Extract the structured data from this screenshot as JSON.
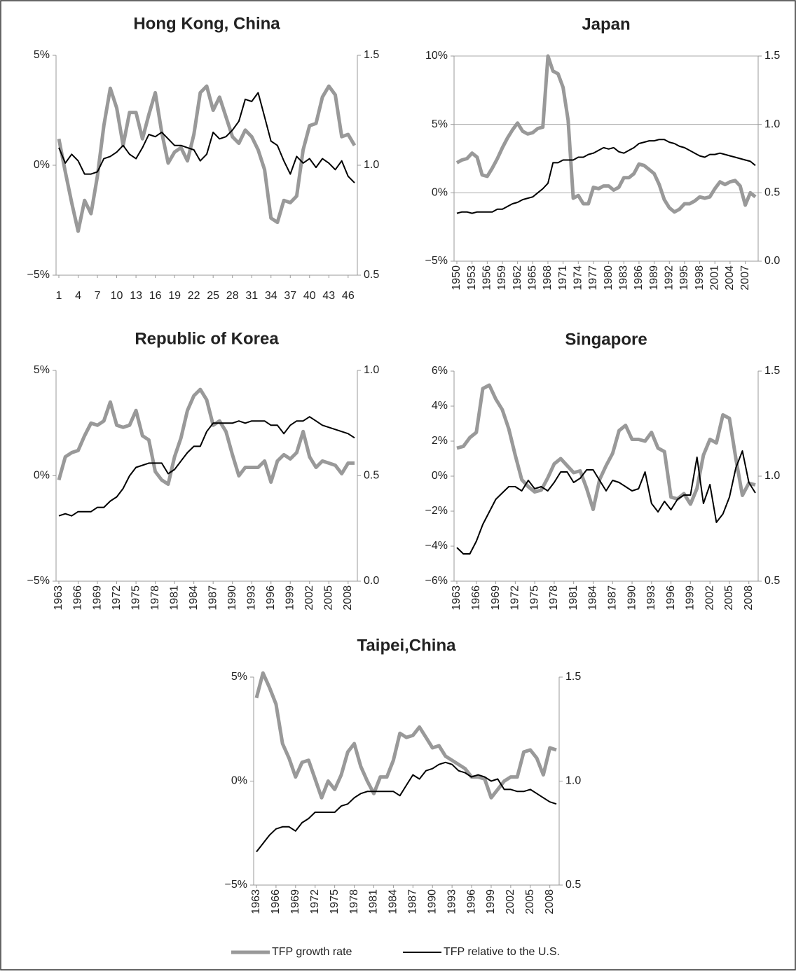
{
  "chart_data": [
    {
      "type": "line",
      "title": "Hong Kong, China",
      "grid": false,
      "categories": [
        "1",
        null,
        null,
        "4",
        null,
        null,
        "7",
        null,
        null,
        "10",
        null,
        null,
        "13",
        null,
        null,
        "16",
        null,
        null,
        "19",
        null,
        null,
        "22",
        null,
        null,
        "25",
        null,
        null,
        "28",
        null,
        null,
        "31",
        null,
        null,
        "34",
        null,
        null,
        "37",
        null,
        null,
        "40",
        null,
        null,
        "43",
        null,
        null,
        "46",
        null
      ],
      "ylim": [
        -5,
        5
      ],
      "yticks": [
        {
          "value": -5,
          "label": "−5%"
        },
        {
          "value": 0,
          "label": "0%"
        },
        {
          "value": 5,
          "label": "5%"
        }
      ],
      "y2lim": [
        0.5,
        1.5
      ],
      "y2ticks": [
        0.5,
        {
          "value": 1,
          "label": "1.0"
        },
        1.5
      ],
      "series": [
        {
          "name": "TFP growth rate",
          "color": "#999999",
          "values": [
            1.2,
            -0.3,
            -1.7,
            -3.0,
            -1.6,
            -2.2,
            -0.5,
            1.8,
            3.5,
            2.6,
            0.9,
            2.4,
            2.4,
            1.2,
            2.3,
            3.3,
            1.5,
            0.1,
            0.6,
            0.8,
            0.2,
            1.4,
            3.3,
            3.6,
            2.5,
            3.1,
            2.2,
            1.3,
            1.0,
            1.6,
            1.3,
            0.7,
            -0.2,
            -2.4,
            -2.6,
            -1.6,
            -1.7,
            -1.4,
            0.7,
            1.8,
            1.9,
            3.1,
            3.6,
            3.2,
            1.3,
            1.4,
            0.9
          ]
        },
        {
          "name": "TFP relative to the U.S.",
          "color": "#000000",
          "axis": "y2",
          "values": [
            1.08,
            1.01,
            1.05,
            1.02,
            0.96,
            0.96,
            0.97,
            1.03,
            1.04,
            1.06,
            1.09,
            1.05,
            1.03,
            1.08,
            1.14,
            1.13,
            1.15,
            1.12,
            1.09,
            1.09,
            1.08,
            1.07,
            1.02,
            1.05,
            1.15,
            1.12,
            1.13,
            1.16,
            1.2,
            1.3,
            1.29,
            1.33,
            1.22,
            1.11,
            1.09,
            1.02,
            0.96,
            1.04,
            1.01,
            1.03,
            0.99,
            1.03,
            1.01,
            0.98,
            1.02,
            0.95,
            0.92
          ]
        }
      ]
    },
    {
      "type": "line",
      "title": "Japan",
      "grid": true,
      "categories": [
        "1950",
        null,
        null,
        "1953",
        null,
        null,
        "1956",
        null,
        null,
        "1959",
        null,
        null,
        "1962",
        null,
        null,
        "1965",
        null,
        null,
        "1968",
        null,
        null,
        "1971",
        null,
        null,
        "1974",
        null,
        null,
        "1977",
        null,
        null,
        "1980",
        null,
        null,
        "1983",
        null,
        null,
        "1986",
        null,
        null,
        "1989",
        null,
        null,
        "1992",
        null,
        null,
        "1995",
        null,
        null,
        "1998",
        null,
        null,
        "2001",
        null,
        null,
        "2004",
        null,
        null,
        "2007",
        null,
        null
      ],
      "ylim": [
        -5,
        10
      ],
      "yticks": [
        {
          "value": -5,
          "label": "−5%"
        },
        {
          "value": 0,
          "label": "0%"
        },
        {
          "value": 5,
          "label": "5%"
        },
        {
          "value": 10,
          "label": "10%"
        }
      ],
      "y2lim": [
        0,
        1.5
      ],
      "y2ticks": [
        {
          "value": 0,
          "label": "0.0"
        },
        0.5,
        {
          "value": 1,
          "label": "1.0"
        },
        1.5
      ],
      "series": [
        {
          "name": "TFP growth rate",
          "color": "#999999",
          "values": [
            2.2,
            2.4,
            2.5,
            2.9,
            2.6,
            1.3,
            1.2,
            1.8,
            2.5,
            3.3,
            4.0,
            4.6,
            5.1,
            4.5,
            4.3,
            4.4,
            4.7,
            4.8,
            10.0,
            8.9,
            8.7,
            7.7,
            5.3,
            -0.4,
            -0.2,
            -0.8,
            -0.8,
            0.4,
            0.3,
            0.5,
            0.5,
            0.2,
            0.4,
            1.1,
            1.1,
            1.4,
            2.1,
            2.0,
            1.7,
            1.4,
            0.6,
            -0.5,
            -1.1,
            -1.4,
            -1.2,
            -0.8,
            -0.8,
            -0.6,
            -0.3,
            -0.4,
            -0.3,
            0.3,
            0.8,
            0.6,
            0.8,
            0.9,
            0.5,
            -0.9,
            0.0,
            -0.3
          ]
        },
        {
          "name": "TFP relative to the U.S.",
          "color": "#000000",
          "axis": "y2",
          "values": [
            0.35,
            0.36,
            0.36,
            0.35,
            0.36,
            0.36,
            0.36,
            0.36,
            0.38,
            0.38,
            0.4,
            0.42,
            0.43,
            0.45,
            0.46,
            0.47,
            0.5,
            0.53,
            0.57,
            0.72,
            0.72,
            0.74,
            0.74,
            0.74,
            0.76,
            0.76,
            0.78,
            0.79,
            0.81,
            0.83,
            0.82,
            0.83,
            0.8,
            0.79,
            0.81,
            0.83,
            0.86,
            0.87,
            0.88,
            0.88,
            0.89,
            0.89,
            0.87,
            0.86,
            0.84,
            0.83,
            0.81,
            0.79,
            0.77,
            0.76,
            0.78,
            0.78,
            0.79,
            0.78,
            0.77,
            0.76,
            0.75,
            0.74,
            0.73,
            0.7
          ]
        }
      ]
    },
    {
      "type": "line",
      "title": "Republic of Korea",
      "grid": false,
      "categories": [
        "1963",
        null,
        null,
        "1966",
        null,
        null,
        "1969",
        null,
        null,
        "1972",
        null,
        null,
        "1975",
        null,
        null,
        "1978",
        null,
        null,
        "1981",
        null,
        null,
        "1984",
        null,
        null,
        "1987",
        null,
        null,
        "1990",
        null,
        null,
        "1993",
        null,
        null,
        "1996",
        null,
        null,
        "1999",
        null,
        null,
        "2002",
        null,
        null,
        "2005",
        null,
        null,
        "2008",
        null
      ],
      "ylim": [
        -5,
        5
      ],
      "yticks": [
        {
          "value": -5,
          "label": "−5%"
        },
        {
          "value": 0,
          "label": "0%"
        },
        {
          "value": 5,
          "label": "5%"
        }
      ],
      "y2lim": [
        0,
        1
      ],
      "y2ticks": [
        {
          "value": 0,
          "label": "0.0"
        },
        0.5,
        {
          "value": 1,
          "label": "1.0"
        }
      ],
      "series": [
        {
          "name": "TFP growth rate",
          "color": "#999999",
          "values": [
            -0.2,
            0.9,
            1.1,
            1.2,
            1.9,
            2.5,
            2.4,
            2.6,
            3.5,
            2.4,
            2.3,
            2.4,
            3.1,
            1.9,
            1.7,
            0.2,
            -0.2,
            -0.4,
            0.9,
            1.8,
            3.1,
            3.8,
            4.1,
            3.6,
            2.4,
            2.6,
            2.1,
            1.0,
            0.0,
            0.4,
            0.4,
            0.4,
            0.7,
            -0.3,
            0.7,
            1.0,
            0.8,
            1.1,
            2.1,
            0.9,
            0.4,
            0.7,
            0.6,
            0.5,
            0.1,
            0.6,
            0.6
          ]
        },
        {
          "name": "TFP relative to the U.S.",
          "color": "#000000",
          "axis": "y2",
          "values": [
            0.31,
            0.32,
            0.31,
            0.33,
            0.33,
            0.33,
            0.35,
            0.35,
            0.38,
            0.4,
            0.44,
            0.5,
            0.54,
            0.55,
            0.56,
            0.56,
            0.56,
            0.51,
            0.53,
            0.57,
            0.61,
            0.64,
            0.64,
            0.71,
            0.75,
            0.75,
            0.75,
            0.75,
            0.76,
            0.75,
            0.76,
            0.76,
            0.76,
            0.74,
            0.74,
            0.7,
            0.74,
            0.76,
            0.76,
            0.78,
            0.76,
            0.74,
            0.73,
            0.72,
            0.71,
            0.7,
            0.68
          ]
        }
      ]
    },
    {
      "type": "line",
      "title": "Singapore",
      "grid": false,
      "categories": [
        "1963",
        null,
        null,
        "1966",
        null,
        null,
        "1969",
        null,
        null,
        "1972",
        null,
        null,
        "1975",
        null,
        null,
        "1978",
        null,
        null,
        "1981",
        null,
        null,
        "1984",
        null,
        null,
        "1987",
        null,
        null,
        "1990",
        null,
        null,
        "1993",
        null,
        null,
        "1996",
        null,
        null,
        "1999",
        null,
        null,
        "2002",
        null,
        null,
        "2005",
        null,
        null,
        "2008",
        null
      ],
      "ylim": [
        -6,
        6
      ],
      "yticks": [
        {
          "value": -6,
          "label": "−6%"
        },
        {
          "value": -4,
          "label": "−4%"
        },
        {
          "value": -2,
          "label": "−2%"
        },
        {
          "value": 0,
          "label": "0%"
        },
        {
          "value": 2,
          "label": "2%"
        },
        {
          "value": 4,
          "label": "4%"
        },
        {
          "value": 6,
          "label": "6%"
        }
      ],
      "y2lim": [
        0.5,
        1.5
      ],
      "y2ticks": [
        0.5,
        {
          "value": 1,
          "label": "1.0"
        },
        1.5
      ],
      "series": [
        {
          "name": "TFP growth rate",
          "color": "#999999",
          "values": [
            1.6,
            1.7,
            2.2,
            2.5,
            5.0,
            5.2,
            4.4,
            3.8,
            2.7,
            1.2,
            -0.2,
            -0.6,
            -0.9,
            -0.8,
            -0.1,
            0.7,
            1.0,
            0.6,
            0.2,
            0.3,
            -0.7,
            -1.9,
            -0.2,
            0.6,
            1.3,
            2.6,
            2.9,
            2.1,
            2.1,
            2.0,
            2.5,
            1.6,
            1.4,
            -1.2,
            -1.3,
            -1.0,
            -1.6,
            -0.7,
            1.2,
            2.1,
            1.9,
            3.5,
            3.3,
            1.0,
            -1.1,
            -0.4,
            -0.5
          ]
        },
        {
          "name": "TFP relative to the U.S.",
          "color": "#000000",
          "axis": "y2",
          "values": [
            0.66,
            0.63,
            0.63,
            0.69,
            0.77,
            0.83,
            0.89,
            0.92,
            0.95,
            0.95,
            0.93,
            0.98,
            0.94,
            0.95,
            0.93,
            0.97,
            1.02,
            1.02,
            0.97,
            0.99,
            1.03,
            1.03,
            0.98,
            0.93,
            0.98,
            0.97,
            0.95,
            0.93,
            0.94,
            1.02,
            0.87,
            0.83,
            0.88,
            0.84,
            0.89,
            0.91,
            0.91,
            1.09,
            0.87,
            0.96,
            0.78,
            0.82,
            0.9,
            1.04,
            1.12,
            0.97,
            0.92
          ]
        }
      ]
    },
    {
      "type": "line",
      "title": "Taipei,China",
      "grid": false,
      "legend": "bottom",
      "categories": [
        "1963",
        null,
        null,
        "1966",
        null,
        null,
        "1969",
        null,
        null,
        "1972",
        null,
        null,
        "1975",
        null,
        null,
        "1978",
        null,
        null,
        "1981",
        null,
        null,
        "1984",
        null,
        null,
        "1987",
        null,
        null,
        "1990",
        null,
        null,
        "1993",
        null,
        null,
        "1996",
        null,
        null,
        "1999",
        null,
        null,
        "2002",
        null,
        null,
        "2005",
        null,
        null,
        "2008",
        null
      ],
      "ylim": [
        -5,
        5
      ],
      "yticks": [
        {
          "value": -5,
          "label": "−5%"
        },
        {
          "value": 0,
          "label": "0%"
        },
        {
          "value": 5,
          "label": "5%"
        }
      ],
      "y2lim": [
        0.5,
        1.5
      ],
      "y2ticks": [
        0.5,
        {
          "value": 1,
          "label": "1.0"
        },
        1.5
      ],
      "series": [
        {
          "name": "TFP growth rate",
          "color": "#999999",
          "values": [
            4.0,
            5.2,
            4.5,
            3.7,
            1.8,
            1.1,
            0.2,
            0.9,
            1.0,
            0.1,
            -0.8,
            0.0,
            -0.4,
            0.3,
            1.4,
            1.8,
            0.7,
            0.0,
            -0.6,
            0.2,
            0.2,
            1.0,
            2.3,
            2.1,
            2.2,
            2.6,
            2.1,
            1.6,
            1.7,
            1.2,
            1.0,
            0.8,
            0.6,
            0.2,
            0.2,
            0.1,
            -0.8,
            -0.4,
            0.0,
            0.2,
            0.2,
            1.4,
            1.5,
            1.1,
            0.3,
            1.6,
            1.5
          ]
        },
        {
          "name": "TFP relative to the U.S.",
          "color": "#000000",
          "axis": "y2",
          "values": [
            0.66,
            0.7,
            0.74,
            0.77,
            0.78,
            0.78,
            0.76,
            0.8,
            0.82,
            0.85,
            0.85,
            0.85,
            0.85,
            0.88,
            0.89,
            0.92,
            0.94,
            0.95,
            0.95,
            0.95,
            0.95,
            0.95,
            0.93,
            0.98,
            1.03,
            1.01,
            1.05,
            1.06,
            1.08,
            1.09,
            1.08,
            1.05,
            1.04,
            1.02,
            1.03,
            1.02,
            1.0,
            1.01,
            0.96,
            0.96,
            0.95,
            0.95,
            0.96,
            0.94,
            0.92,
            0.9,
            0.89
          ]
        }
      ]
    }
  ]
}
